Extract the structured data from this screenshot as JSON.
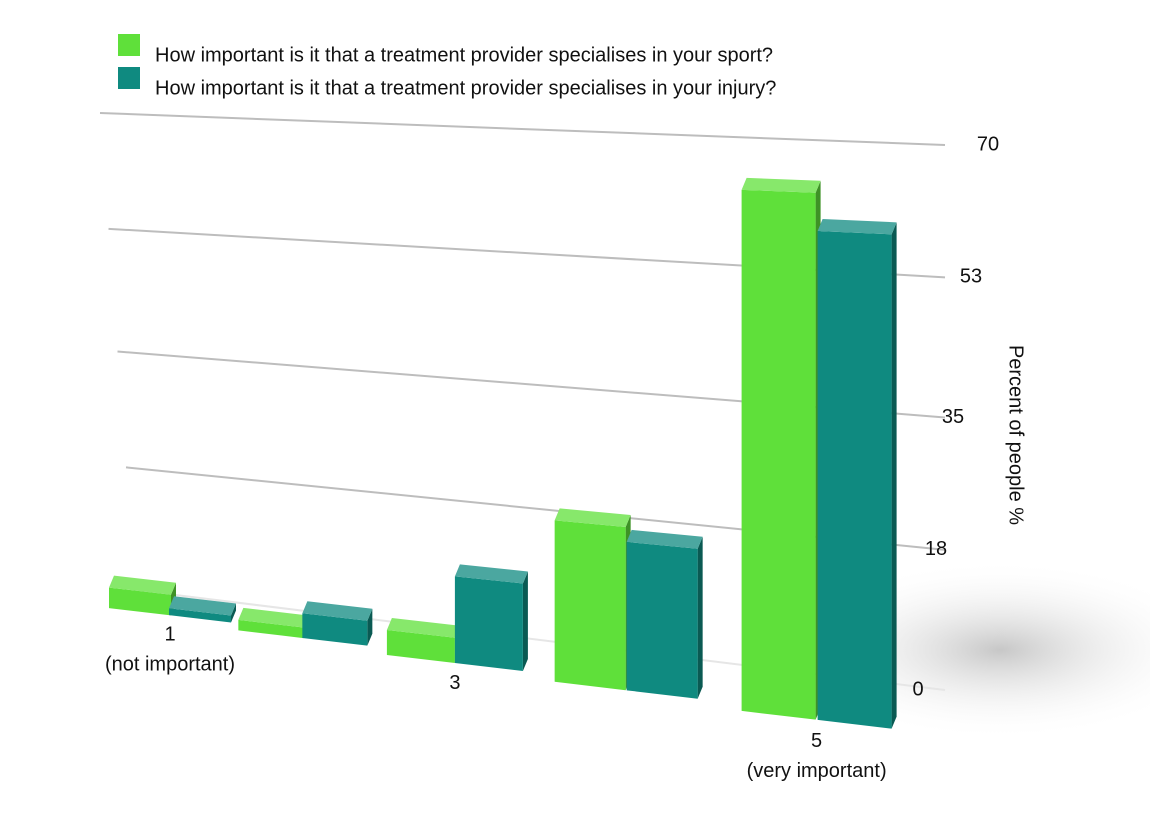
{
  "chart_data": {
    "type": "bar3d",
    "categories": [
      "1\n(not important)",
      null,
      "3",
      null,
      "5\n(very important)"
    ],
    "series": [
      {
        "name": "How important is it that a treatment provider specialises in your sport?",
        "color": "#5fe03a",
        "values": [
          3,
          1.5,
          3.5,
          22,
          69
        ]
      },
      {
        "name": "How important is it that a treatment provider specialises in your injury?",
        "color": "#0f8a80",
        "values": [
          1,
          3.5,
          12,
          20,
          64
        ]
      }
    ],
    "y_label": "Percent of people %",
    "ylim": [
      0,
      70
    ],
    "yticks": [
      0,
      18,
      35,
      53,
      70
    ],
    "grid": true,
    "legend": "top-left"
  }
}
